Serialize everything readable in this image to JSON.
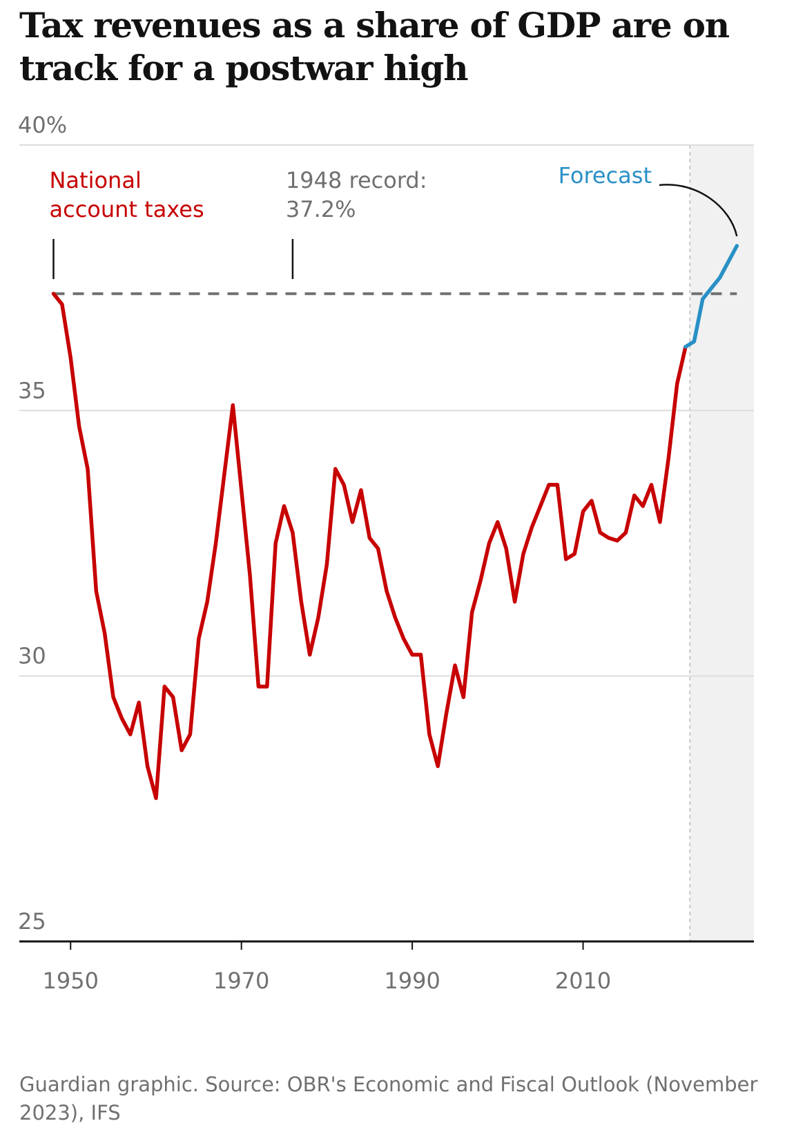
{
  "title": "Tax revenues as a share of GDP are on track for a postwar high",
  "source": "Guardian graphic. Source: OBR's Economic and Fiscal Outlook (November 2023), IFS",
  "colors": {
    "actual": "#c70000",
    "forecast": "#2990c6",
    "shade": "#f1f1f1",
    "record": "#707070"
  },
  "chart_data": {
    "type": "line",
    "title": "Tax revenues as a share of GDP are on track for a postwar high",
    "xlabel": "",
    "ylabel": "",
    "xlim": [
      1944,
      2030
    ],
    "ylim": [
      25,
      40
    ],
    "x_ticks": [
      1950,
      1970,
      1990,
      2010
    ],
    "y_ticks": [
      {
        "value": 25,
        "label": "25"
      },
      {
        "value": 30,
        "label": "30"
      },
      {
        "value": 35,
        "label": "35"
      },
      {
        "value": 40,
        "label": "40%"
      }
    ],
    "grid": true,
    "forecast_start": 2022.5,
    "series": [
      {
        "name": "National account taxes",
        "x": [
          1948,
          1949,
          1950,
          1951,
          1952,
          1953,
          1954,
          1955,
          1956,
          1957,
          1958,
          1959,
          1960,
          1961,
          1962,
          1963,
          1964,
          1965,
          1966,
          1967,
          1968,
          1969,
          1970,
          1971,
          1972,
          1973,
          1974,
          1975,
          1976,
          1977,
          1978,
          1979,
          1980,
          1981,
          1982,
          1983,
          1984,
          1985,
          1986,
          1987,
          1988,
          1989,
          1990,
          1991,
          1992,
          1993,
          1994,
          1995,
          1996,
          1997,
          1998,
          1999,
          2000,
          2001,
          2002,
          2003,
          2004,
          2005,
          2006,
          2007,
          2008,
          2009,
          2010,
          2011,
          2012,
          2013,
          2014,
          2015,
          2016,
          2017,
          2018,
          2019,
          2020,
          2021,
          2022
        ],
        "values": [
          37.2,
          37.0,
          36.0,
          34.7,
          33.9,
          31.6,
          30.8,
          29.6,
          29.2,
          28.9,
          29.5,
          28.3,
          27.7,
          29.8,
          29.6,
          28.6,
          28.9,
          30.7,
          31.4,
          32.5,
          33.8,
          35.1,
          33.5,
          31.9,
          29.8,
          29.8,
          32.5,
          33.2,
          32.7,
          31.4,
          30.4,
          31.1,
          32.1,
          33.9,
          33.6,
          32.9,
          33.5,
          32.6,
          32.4,
          31.6,
          31.1,
          30.7,
          30.4,
          30.4,
          28.9,
          28.3,
          29.3,
          30.2,
          29.6,
          31.2,
          31.8,
          32.5,
          32.9,
          32.4,
          31.4,
          32.3,
          32.8,
          33.2,
          33.6,
          33.6,
          32.2,
          32.3,
          33.1,
          33.3,
          32.7,
          32.6,
          32.55,
          32.7,
          33.4,
          33.2,
          33.6,
          32.9,
          34.1,
          35.5,
          36.2
        ]
      },
      {
        "name": "Forecast",
        "x": [
          2022,
          2023,
          2024,
          2025,
          2026,
          2027,
          2028
        ],
        "values": [
          36.2,
          36.3,
          37.1,
          37.3,
          37.5,
          37.8,
          38.1
        ]
      }
    ],
    "annotations": [
      {
        "text": [
          "National",
          "account taxes"
        ],
        "x": 1948
      },
      {
        "text": [
          "1948 record:",
          "37.2%"
        ],
        "x": 1976,
        "y": 37.2
      },
      {
        "text": [
          "Forecast"
        ],
        "x": 2028
      }
    ]
  }
}
